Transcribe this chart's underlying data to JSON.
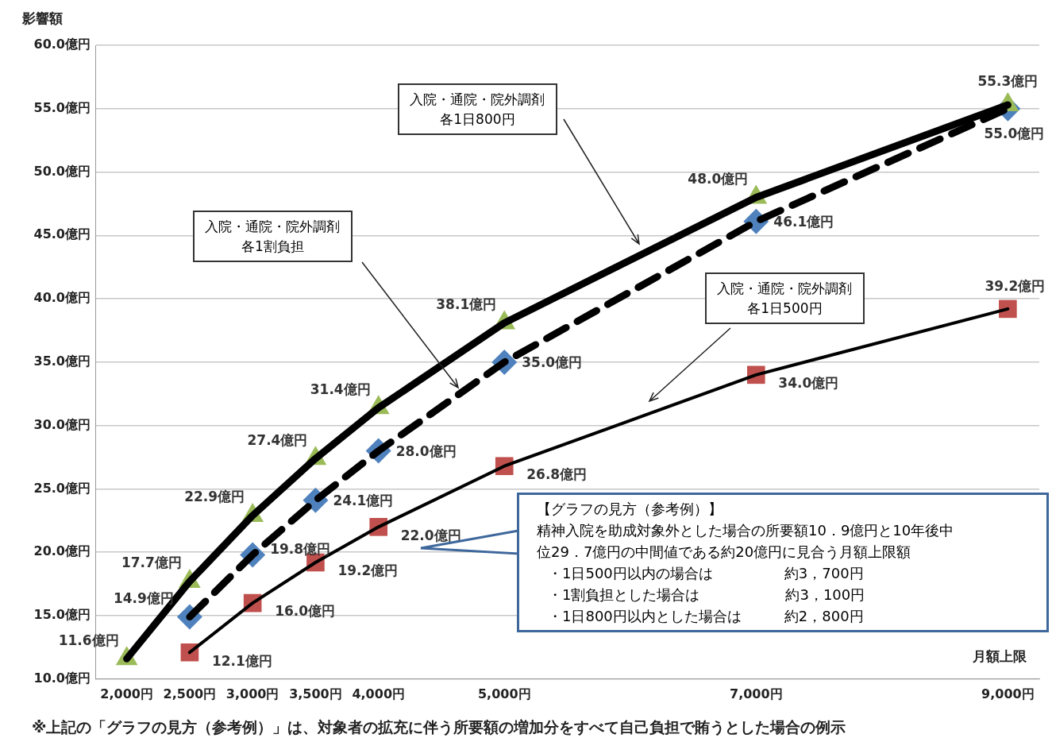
{
  "chart_data": {
    "type": "line",
    "ylabel": "影響額",
    "xlabel": "月額上限",
    "xlim": [
      1750,
      9250
    ],
    "xticks": [
      {
        "value": 2000,
        "label": "2,000円"
      },
      {
        "value": 2500,
        "label": "2,500円"
      },
      {
        "value": 3000,
        "label": "3,000円"
      },
      {
        "value": 3500,
        "label": "3,500円"
      },
      {
        "value": 4000,
        "label": "4,000円"
      },
      {
        "value": 5000,
        "label": "5,000円"
      },
      {
        "value": 7000,
        "label": "7,000円"
      },
      {
        "value": 9000,
        "label": "9,000円"
      }
    ],
    "ylim": [
      10,
      60
    ],
    "yticks": [
      {
        "value": 10,
        "label": "10.0億円"
      },
      {
        "value": 15,
        "label": "15.0億円"
      },
      {
        "value": 20,
        "label": "20.0億円"
      },
      {
        "value": 25,
        "label": "25.0億円"
      },
      {
        "value": 30,
        "label": "30.0億円"
      },
      {
        "value": 35,
        "label": "35.0億円"
      },
      {
        "value": 40,
        "label": "40.0億円"
      },
      {
        "value": 45,
        "label": "45.0億円"
      },
      {
        "value": 50,
        "label": "50.0億円"
      },
      {
        "value": 55,
        "label": "55.0億円"
      },
      {
        "value": 60,
        "label": "60.0億円"
      }
    ],
    "grid": "y",
    "legend": false,
    "series": [
      {
        "color": "#9bbb59",
        "marker": "triangle",
        "line_style": "solid",
        "x": [
          2000,
          2500,
          3000,
          3500,
          4000,
          5000,
          7000,
          9000
        ],
        "values": [
          11.6,
          17.7,
          22.9,
          27.4,
          31.4,
          38.1,
          48.0,
          55.3
        ],
        "value_labels": [
          "11.6億円",
          "17.7億円",
          "22.9億円",
          "27.4億円",
          "31.4億円",
          "38.1億円",
          "48.0億円",
          "55.3億円"
        ]
      },
      {
        "color": "#4f81bd",
        "marker": "diamond",
        "line_style": "dashed",
        "x": [
          2500,
          3000,
          3500,
          4000,
          5000,
          7000,
          9000
        ],
        "values": [
          14.9,
          19.8,
          24.1,
          28.0,
          35.0,
          46.1,
          55.0
        ],
        "value_labels": [
          "14.9億円",
          "19.8億円",
          "24.1億円",
          "28.0億円",
          "35.0億円",
          "46.1億円",
          "55.0億円"
        ]
      },
      {
        "color": "#c0504d",
        "marker": "square",
        "line_style": "solid",
        "x": [
          2500,
          3000,
          3500,
          4000,
          5000,
          7000,
          9000
        ],
        "values": [
          12.1,
          16.0,
          19.2,
          22.0,
          26.8,
          34.0,
          39.2
        ],
        "value_labels": [
          "12.1億円",
          "16.0億円",
          "19.2億円",
          "22.0億円",
          "26.8億円",
          "34.0億円",
          "39.2億円"
        ]
      }
    ],
    "annotations": [
      "入院・通院・院外調剤各1日800円",
      "入院・通院・院外調剤各1割負担",
      "入院・通院・院外調剤各1日500円",
      "【グラフの見方（参考例）】",
      "精神入院を助成対象外とした場合の所要額10．9億円と10年後中位29．7億円の中間値である約20億円に見合う月額上限額",
      "・1日500円以内の場合は　　　　　約3，700円",
      "・1割負担とした場合は　　　　　　約3，100円",
      "・1日800円以内とした場合は　　　約2，800円",
      "※上記の「グラフの見方（参考例）」は、対象者の拡充に伴う所要額の増加分をすべて自己負担で賄うとした場合の例示"
    ]
  }
}
